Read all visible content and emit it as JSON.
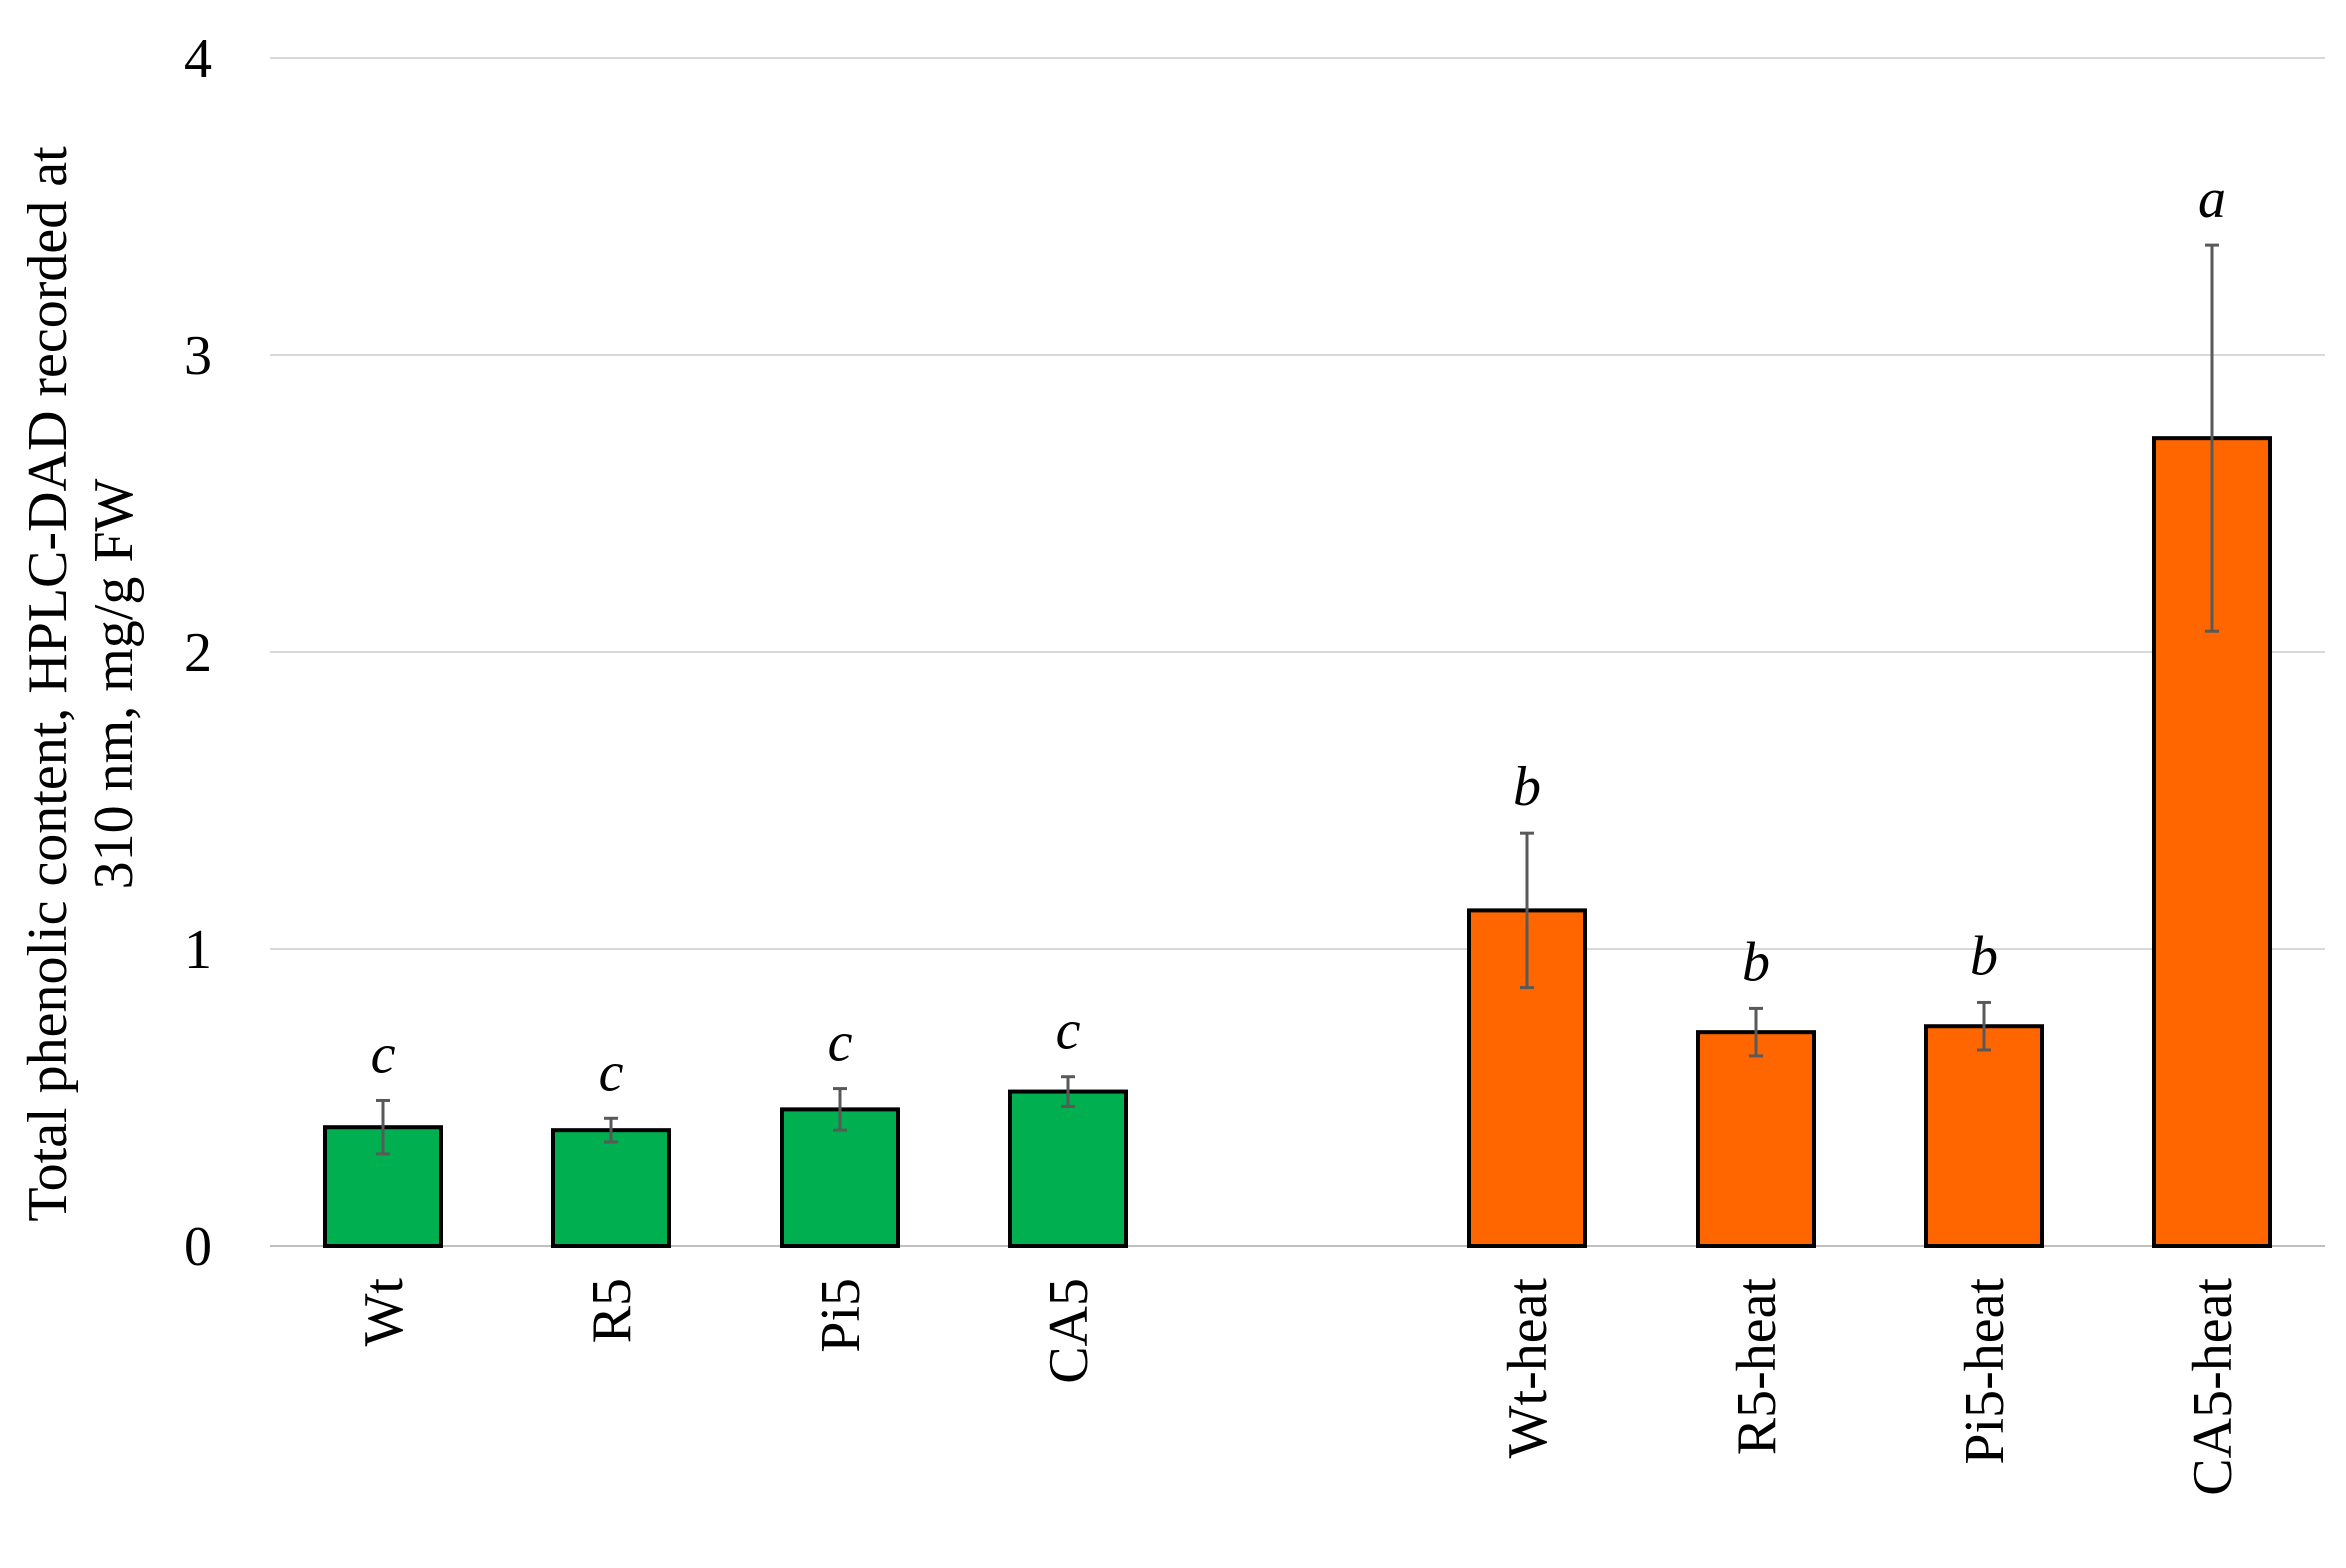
{
  "chart_data": {
    "type": "bar",
    "title": "",
    "xlabel": "",
    "ylabel_lines": [
      "Total phenolic content, HPLC-DAD recorded at",
      "310 nm, mg/g FW"
    ],
    "ylim": [
      0,
      4
    ],
    "yticks": [
      0,
      1,
      2,
      3,
      4
    ],
    "grid": true,
    "categories": [
      "Wt",
      "R5",
      "Pi5",
      "CA5",
      "Wt-heat",
      "R5-heat",
      "Pi5-heat",
      "CA5-heat"
    ],
    "values": [
      0.4,
      0.39,
      0.46,
      0.52,
      1.13,
      0.72,
      0.74,
      2.72
    ],
    "errors": [
      0.09,
      0.04,
      0.07,
      0.05,
      0.26,
      0.08,
      0.08,
      0.65
    ],
    "significance": [
      "c",
      "c",
      "c",
      "c",
      "b",
      "b",
      "b",
      "a"
    ],
    "groups": [
      {
        "categories": [
          "Wt",
          "R5",
          "Pi5",
          "CA5"
        ],
        "color": "#00b050"
      },
      {
        "categories": [
          "Wt-heat",
          "R5-heat",
          "Pi5-heat",
          "CA5-heat"
        ],
        "color": "#ff6600"
      }
    ]
  }
}
